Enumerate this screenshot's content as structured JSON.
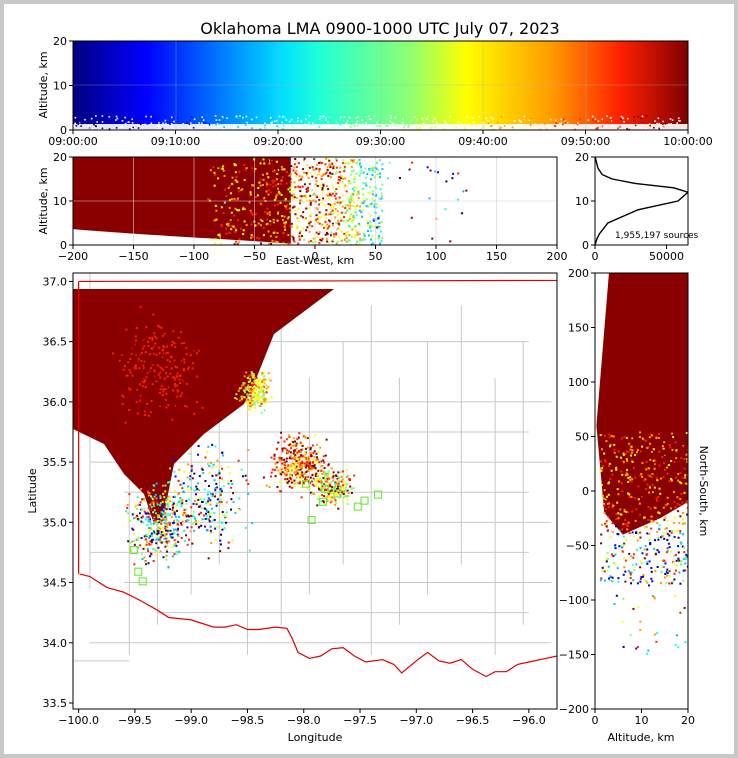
{
  "title": "Oklahoma LMA 0900-1000 UTC July 07, 2023",
  "colormap": [
    "#00007f",
    "#0000ff",
    "#00bfff",
    "#20ffd7",
    "#80ff80",
    "#ffff00",
    "#ff9a00",
    "#ff2000",
    "#800000"
  ],
  "chart_data": [
    {
      "id": "time_altitude",
      "type": "scatter",
      "xlabel": "",
      "ylabel": "Altitude, km",
      "xlim": [
        "09:00:00",
        "10:00:00"
      ],
      "ylim": [
        0,
        20
      ],
      "xticks": [
        "09:00:00",
        "09:10:00",
        "09:20:00",
        "09:30:00",
        "09:40:00",
        "09:50:00",
        "10:00:00"
      ],
      "yticks": [
        "0",
        "10",
        "20"
      ],
      "grid": true,
      "description_values": {
        "altitude_core_km": [
          0,
          20
        ],
        "near_ground_band_km": [
          0,
          3
        ]
      }
    },
    {
      "id": "eastwest_altitude",
      "type": "scatter",
      "xlabel": "East-West, km",
      "ylabel": "Altitude, km",
      "xlim": [
        -200,
        200
      ],
      "ylim": [
        0,
        20
      ],
      "xticks": [
        "−200",
        "−150",
        "−100",
        "−50",
        "0",
        "50",
        "100",
        "150",
        "200"
      ],
      "yticks": [
        "0",
        "10",
        "20"
      ],
      "grid": true,
      "storm_extent_km": [
        -200,
        50
      ],
      "scattered_extent_km": [
        50,
        120
      ]
    },
    {
      "id": "altitude_histogram",
      "type": "line",
      "xlim": [
        0,
        65000
      ],
      "ylim": [
        0,
        20
      ],
      "xticks": [
        "0",
        "50000"
      ],
      "yticks": [
        "0",
        "10",
        "20"
      ],
      "annotation": "1,955,197 sources",
      "x": [
        0,
        1500,
        3000,
        9000,
        30000,
        58000,
        65000,
        55000,
        28000,
        12000,
        5000,
        2000,
        500,
        0
      ],
      "y": [
        0,
        1.5,
        2.5,
        5,
        8,
        10,
        12,
        13,
        14,
        15,
        16,
        17.5,
        19.5,
        20
      ]
    },
    {
      "id": "plan_view",
      "type": "scatter",
      "xlabel": "Longitude",
      "ylabel": "Latitude",
      "xlim": [
        -100.05,
        -95.75
      ],
      "ylim": [
        33.45,
        37.07
      ],
      "xticks": [
        "−100.0",
        "−99.5",
        "−99.0",
        "−98.5",
        "−98.0",
        "−97.5",
        "−97.0",
        "−96.5",
        "−96.0"
      ],
      "yticks": [
        "33.5",
        "34.0",
        "34.5",
        "35.0",
        "35.5",
        "36.0",
        "36.5",
        "37.0"
      ],
      "stations_lon_lat": [
        [
          -99.51,
          34.77
        ],
        [
          -99.47,
          34.59
        ],
        [
          -99.43,
          34.51
        ],
        [
          -97.93,
          35.02
        ],
        [
          -97.83,
          35.17
        ],
        [
          -97.7,
          35.24
        ],
        [
          -97.52,
          35.13
        ],
        [
          -97.46,
          35.18
        ],
        [
          -97.34,
          35.23
        ],
        [
          -97.98,
          35.32
        ],
        [
          -97.81,
          35.28
        ]
      ],
      "texas_border_lon_lat": [
        [
          -99.99,
          34.57
        ],
        [
          -99.9,
          34.55
        ],
        [
          -99.75,
          34.46
        ],
        [
          -99.6,
          34.42
        ],
        [
          -99.45,
          34.35
        ],
        [
          -99.3,
          34.27
        ],
        [
          -99.2,
          34.21
        ],
        [
          -99.0,
          34.19
        ],
        [
          -98.9,
          34.16
        ],
        [
          -98.8,
          34.13
        ],
        [
          -98.7,
          34.13
        ],
        [
          -98.6,
          34.15
        ],
        [
          -98.5,
          34.11
        ],
        [
          -98.4,
          34.11
        ],
        [
          -98.25,
          34.13
        ],
        [
          -98.15,
          34.12
        ],
        [
          -98.1,
          34.03
        ],
        [
          -98.05,
          33.92
        ],
        [
          -97.95,
          33.87
        ],
        [
          -97.85,
          33.89
        ],
        [
          -97.75,
          33.95
        ],
        [
          -97.65,
          33.96
        ],
        [
          -97.55,
          33.89
        ],
        [
          -97.45,
          33.84
        ],
        [
          -97.3,
          33.86
        ],
        [
          -97.2,
          33.82
        ],
        [
          -97.13,
          33.75
        ],
        [
          -97.0,
          33.85
        ],
        [
          -96.9,
          33.92
        ],
        [
          -96.8,
          33.85
        ],
        [
          -96.7,
          33.83
        ],
        [
          -96.6,
          33.86
        ],
        [
          -96.5,
          33.78
        ],
        [
          -96.38,
          33.72
        ],
        [
          -96.3,
          33.76
        ],
        [
          -96.2,
          33.76
        ],
        [
          -96.1,
          33.82
        ],
        [
          -96.0,
          33.84
        ],
        [
          -95.85,
          33.87
        ],
        [
          -95.75,
          33.89
        ]
      ],
      "kansas_border_lat": 37.0,
      "panhandle_lon": -100.0
    },
    {
      "id": "altitude_northsouth",
      "type": "scatter",
      "xlabel": "Altitude, km",
      "ylabel": "North-South, km",
      "xlim": [
        0,
        20
      ],
      "ylim": [
        -200,
        200
      ],
      "xticks": [
        "0",
        "10",
        "20"
      ],
      "yticks": [
        "−200",
        "−150",
        "−100",
        "−50",
        "0",
        "50",
        "100",
        "150",
        "200"
      ],
      "core_range_km": [
        -40,
        200
      ]
    }
  ]
}
